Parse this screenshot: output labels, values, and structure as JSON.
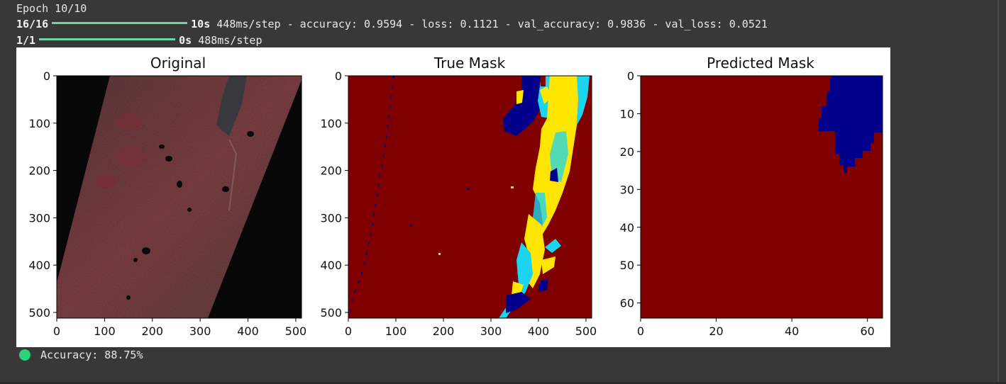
{
  "output": {
    "epoch_line": "Epoch 10/10",
    "train": {
      "steps": "16/16",
      "time": "10s",
      "rest": "448ms/step - accuracy: 0.9594 - loss: 0.1121 - val_accuracy: 0.9836 - val_loss: 0.0521"
    },
    "predict": {
      "steps": "1/1",
      "time": "0s",
      "rest": "488ms/step"
    },
    "accuracy_text": "Accuracy: 88.75%",
    "progress_color": "#6dd7a8",
    "status_dot_color": "#2ad27a"
  },
  "figure": {
    "panels": [
      {
        "title": "Original",
        "xlim": [
          0,
          512
        ],
        "ylim": [
          0,
          512
        ],
        "xticks": [
          0,
          100,
          200,
          300,
          400,
          500
        ],
        "yticks": [
          0,
          100,
          200,
          300,
          400,
          500
        ]
      },
      {
        "title": "True Mask",
        "xlim": [
          0,
          512
        ],
        "ylim": [
          0,
          512
        ],
        "xticks": [
          0,
          100,
          200,
          300,
          400,
          500
        ],
        "yticks": [
          0,
          100,
          200,
          300,
          400,
          500
        ]
      },
      {
        "title": "Predicted Mask",
        "xlim": [
          0,
          64
        ],
        "ylim": [
          0,
          64
        ],
        "xticks": [
          0,
          20,
          40,
          60
        ],
        "yticks": [
          0,
          10,
          20,
          30,
          40,
          50,
          60
        ]
      }
    ],
    "colors": {
      "mask_background": "#800000",
      "water": "#00008b",
      "cyan": "#1ad4f0",
      "yellow": "#ffe600",
      "satellite_dark": "#5a2a2c"
    }
  }
}
